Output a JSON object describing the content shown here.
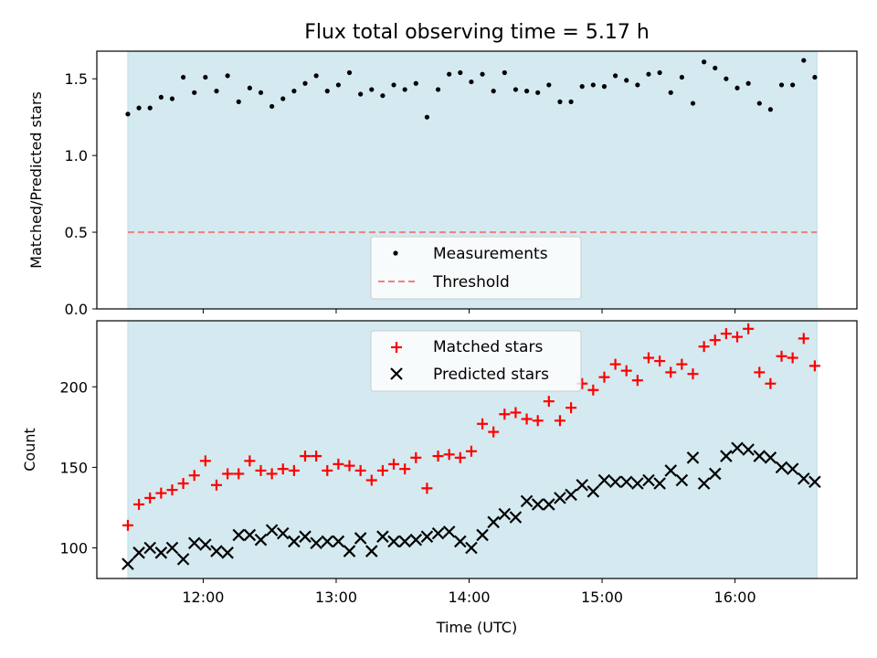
{
  "chart_data": [
    {
      "type": "scatter",
      "title": "Flux total observing time = 5.17 h",
      "ylabel": "Matched/Predicted stars",
      "xlabel": "",
      "xlim": [
        "11:12",
        "16:55"
      ],
      "ylim": [
        0,
        1.68
      ],
      "yticks": [
        "0.0",
        "0.5",
        "1.0",
        "1.5"
      ],
      "shaded_span": [
        "11:26",
        "16:37"
      ],
      "shade_color": "#d4eaf0",
      "threshold": 0.5,
      "threshold_color": "#f08080",
      "legend": {
        "placement": "bottom-center",
        "entries": [
          "Measurements",
          "Threshold"
        ]
      },
      "series": [
        {
          "name": "Measurements",
          "marker": "dot",
          "color": "#000000",
          "x": [
            "11:26",
            "11:31",
            "11:36",
            "11:41",
            "11:46",
            "11:51",
            "11:56",
            "12:01",
            "12:06",
            "12:11",
            "12:16",
            "12:21",
            "12:26",
            "12:31",
            "12:36",
            "12:41",
            "12:46",
            "12:51",
            "12:56",
            "13:01",
            "13:06",
            "13:11",
            "13:16",
            "13:21",
            "13:26",
            "13:31",
            "13:36",
            "13:41",
            "13:46",
            "13:51",
            "13:56",
            "14:01",
            "14:06",
            "14:11",
            "14:16",
            "14:21",
            "14:26",
            "14:31",
            "14:36",
            "14:41",
            "14:46",
            "14:51",
            "14:56",
            "15:01",
            "15:06",
            "15:11",
            "15:16",
            "15:21",
            "15:26",
            "15:31",
            "15:36",
            "15:41",
            "15:46",
            "15:51",
            "15:56",
            "16:01",
            "16:06",
            "16:11",
            "16:16",
            "16:21",
            "16:26",
            "16:31",
            "16:36"
          ],
          "y": [
            1.27,
            1.31,
            1.31,
            1.38,
            1.37,
            1.51,
            1.41,
            1.51,
            1.42,
            1.52,
            1.35,
            1.44,
            1.41,
            1.32,
            1.37,
            1.42,
            1.47,
            1.52,
            1.42,
            1.46,
            1.54,
            1.4,
            1.43,
            1.39,
            1.46,
            1.43,
            1.47,
            1.25,
            1.43,
            1.53,
            1.54,
            1.48,
            1.53,
            1.42,
            1.54,
            1.43,
            1.42,
            1.41,
            1.46,
            1.35,
            1.35,
            1.45,
            1.46,
            1.45,
            1.52,
            1.49,
            1.46,
            1.53,
            1.54,
            1.41,
            1.51,
            1.34,
            1.61,
            1.57,
            1.5,
            1.44,
            1.47,
            1.34,
            1.3,
            1.46,
            1.46,
            1.62,
            1.51
          ]
        }
      ]
    },
    {
      "type": "scatter",
      "title": "",
      "ylabel": "Count",
      "xlabel": "Time (UTC)",
      "xlim": [
        "11:12",
        "16:55"
      ],
      "xticks": [
        "12:00",
        "13:00",
        "14:00",
        "15:00",
        "16:00"
      ],
      "ylim": [
        81,
        241
      ],
      "yticks": [
        "100",
        "150",
        "200"
      ],
      "shaded_span": [
        "11:26",
        "16:37"
      ],
      "legend": {
        "placement": "top-center",
        "entries": [
          "Matched stars",
          "Predicted stars"
        ]
      },
      "x": [
        "11:26",
        "11:31",
        "11:36",
        "11:41",
        "11:46",
        "11:51",
        "11:56",
        "12:01",
        "12:06",
        "12:11",
        "12:16",
        "12:21",
        "12:26",
        "12:31",
        "12:36",
        "12:41",
        "12:46",
        "12:51",
        "12:56",
        "13:01",
        "13:06",
        "13:11",
        "13:16",
        "13:21",
        "13:26",
        "13:31",
        "13:36",
        "13:41",
        "13:46",
        "13:51",
        "13:56",
        "14:01",
        "14:06",
        "14:11",
        "14:16",
        "14:21",
        "14:26",
        "14:31",
        "14:36",
        "14:41",
        "14:46",
        "14:51",
        "14:56",
        "15:01",
        "15:06",
        "15:11",
        "15:16",
        "15:21",
        "15:26",
        "15:31",
        "15:36",
        "15:41",
        "15:46",
        "15:51",
        "15:56",
        "16:01",
        "16:06",
        "16:11",
        "16:16",
        "16:21",
        "16:26",
        "16:31",
        "16:36"
      ],
      "series": [
        {
          "name": "Matched stars",
          "marker": "plus",
          "color": "#ff0000",
          "values": [
            114,
            127,
            131,
            134,
            136,
            140,
            145,
            154,
            139,
            146,
            146,
            154,
            148,
            146,
            149,
            148,
            157,
            157,
            148,
            152,
            151,
            148,
            142,
            148,
            152,
            149,
            156,
            137,
            157,
            158,
            156,
            160,
            177,
            172,
            183,
            184,
            180,
            179,
            191,
            179,
            187,
            202,
            198,
            206,
            214,
            210,
            204,
            218,
            216,
            209,
            214,
            208,
            225,
            229,
            233,
            231,
            236,
            209,
            202,
            219,
            218,
            230,
            213
          ]
        },
        {
          "name": "Predicted stars",
          "marker": "x",
          "color": "#000000",
          "values": [
            90,
            97,
            100,
            97,
            100,
            93,
            103,
            102,
            98,
            97,
            108,
            108,
            105,
            111,
            109,
            104,
            107,
            103,
            104,
            104,
            98,
            106,
            98,
            107,
            104,
            104,
            105,
            107,
            109,
            110,
            104,
            100,
            108,
            116,
            121,
            119,
            129,
            127,
            127,
            131,
            133,
            139,
            135,
            142,
            141,
            141,
            140,
            142,
            140,
            148,
            142,
            156,
            140,
            146,
            157,
            162,
            161,
            157,
            156,
            150,
            149,
            143,
            141
          ]
        }
      ]
    }
  ]
}
